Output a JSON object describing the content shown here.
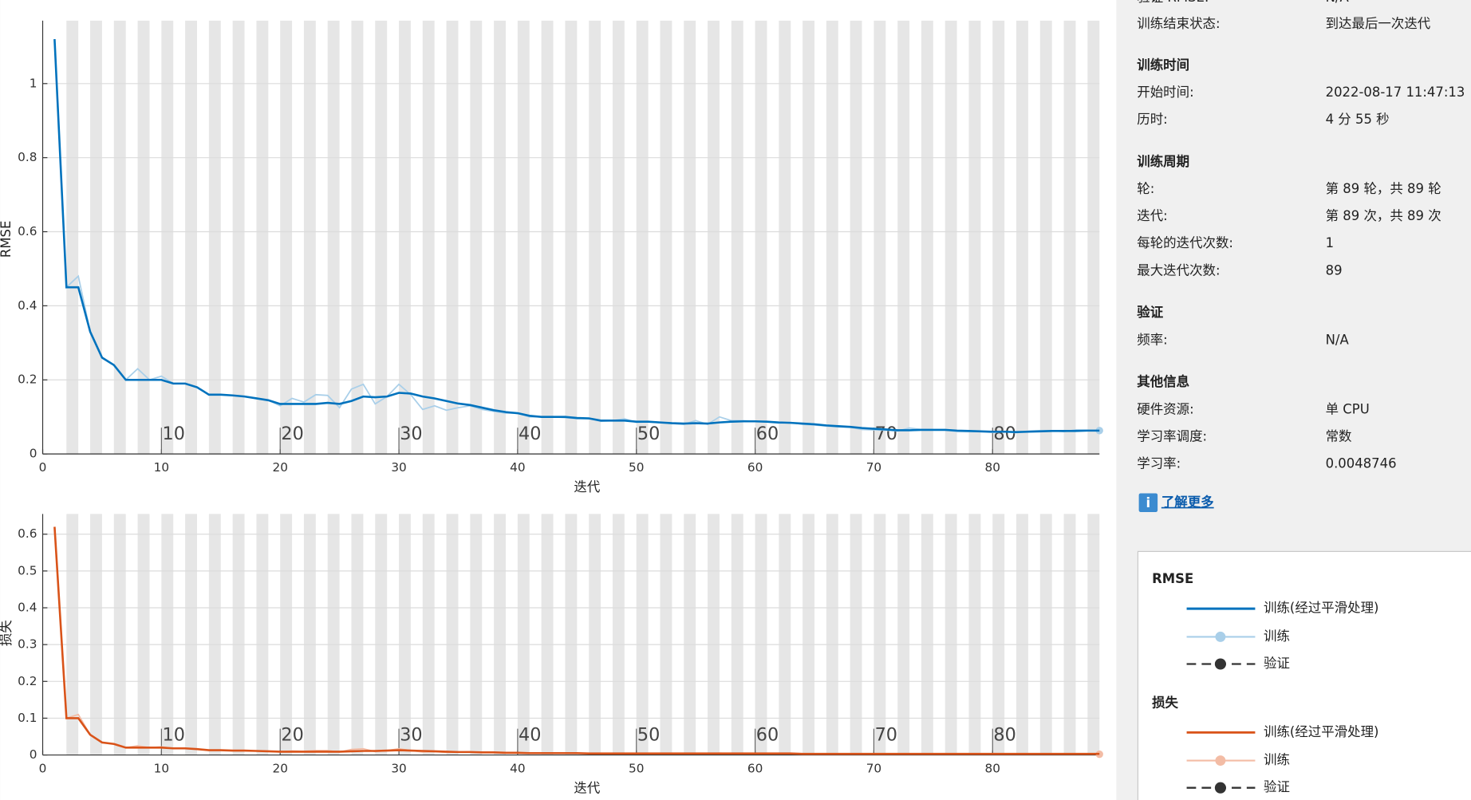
{
  "chart_data": [
    {
      "type": "line",
      "y_label": "RMSE",
      "x_label": "迭代",
      "x": [
        1,
        2,
        3,
        4,
        5,
        6,
        7,
        8,
        9,
        10,
        11,
        12,
        13,
        14,
        15,
        16,
        17,
        18,
        19,
        20,
        21,
        22,
        23,
        24,
        25,
        26,
        27,
        28,
        29,
        30,
        31,
        32,
        33,
        34,
        35,
        36,
        37,
        38,
        39,
        40,
        41,
        42,
        43,
        44,
        45,
        46,
        47,
        48,
        49,
        50,
        51,
        52,
        53,
        54,
        55,
        56,
        57,
        58,
        59,
        60,
        61,
        62,
        63,
        64,
        65,
        66,
        67,
        68,
        69,
        70,
        71,
        72,
        73,
        74,
        75,
        76,
        77,
        78,
        79,
        80,
        81,
        82,
        83,
        84,
        85,
        86,
        87,
        88,
        89
      ],
      "series": [
        {
          "name": "训练",
          "color": "#a9cfe9",
          "marker_last": true,
          "values": [
            1.12,
            0.45,
            0.48,
            0.33,
            0.26,
            0.24,
            0.2,
            0.23,
            0.2,
            0.21,
            0.19,
            0.19,
            0.18,
            0.16,
            0.16,
            0.158,
            0.155,
            0.15,
            0.145,
            0.13,
            0.15,
            0.14,
            0.16,
            0.158,
            0.125,
            0.175,
            0.188,
            0.135,
            0.155,
            0.188,
            0.16,
            0.12,
            0.13,
            0.118,
            0.125,
            0.13,
            0.12,
            0.115,
            0.11,
            0.11,
            0.1,
            0.1,
            0.1,
            0.098,
            0.095,
            0.096,
            0.088,
            0.09,
            0.095,
            0.085,
            0.087,
            0.084,
            0.082,
            0.08,
            0.09,
            0.08,
            0.1,
            0.09,
            0.09,
            0.088,
            0.086,
            0.083,
            0.085,
            0.08,
            0.078,
            0.075,
            0.073,
            0.072,
            0.066,
            0.065,
            0.064,
            0.062,
            0.07,
            0.066,
            0.065,
            0.065,
            0.06,
            0.06,
            0.06,
            0.058,
            0.06,
            0.057,
            0.062,
            0.063,
            0.063,
            0.06,
            0.065,
            0.064,
            0.063
          ]
        },
        {
          "name": "训练(经过平滑处理)",
          "color": "#0072bd",
          "values": [
            1.12,
            0.45,
            0.45,
            0.33,
            0.26,
            0.24,
            0.2,
            0.2,
            0.2,
            0.2,
            0.19,
            0.19,
            0.18,
            0.16,
            0.16,
            0.158,
            0.155,
            0.15,
            0.145,
            0.135,
            0.135,
            0.135,
            0.135,
            0.138,
            0.135,
            0.143,
            0.155,
            0.153,
            0.155,
            0.165,
            0.163,
            0.155,
            0.15,
            0.143,
            0.136,
            0.132,
            0.125,
            0.118,
            0.113,
            0.11,
            0.103,
            0.1,
            0.1,
            0.1,
            0.097,
            0.096,
            0.09,
            0.09,
            0.09,
            0.087,
            0.087,
            0.085,
            0.083,
            0.082,
            0.083,
            0.082,
            0.085,
            0.087,
            0.088,
            0.088,
            0.087,
            0.085,
            0.084,
            0.082,
            0.08,
            0.077,
            0.075,
            0.073,
            0.07,
            0.068,
            0.066,
            0.064,
            0.064,
            0.065,
            0.065,
            0.065,
            0.063,
            0.062,
            0.061,
            0.06,
            0.06,
            0.059,
            0.06,
            0.061,
            0.062,
            0.062,
            0.062,
            0.063,
            0.063
          ]
        }
      ],
      "validation_name": "验证",
      "xlim": [
        0,
        89
      ],
      "xticks": [
        0,
        10,
        20,
        30,
        40,
        50,
        60,
        70,
        80
      ],
      "ylim": [
        0,
        1.17
      ],
      "yticks": [
        0,
        0.2,
        0.4,
        0.6,
        0.8,
        1
      ],
      "epoch_ticks": [
        10,
        20,
        30,
        40,
        50,
        60,
        70,
        80
      ]
    },
    {
      "type": "line",
      "y_label": "损失",
      "x_label": "迭代",
      "x": [
        1,
        2,
        3,
        4,
        5,
        6,
        7,
        8,
        9,
        10,
        11,
        12,
        13,
        14,
        15,
        16,
        17,
        18,
        19,
        20,
        21,
        22,
        23,
        24,
        25,
        26,
        27,
        28,
        29,
        30,
        31,
        32,
        33,
        34,
        35,
        36,
        37,
        38,
        39,
        40,
        41,
        42,
        43,
        44,
        45,
        46,
        47,
        48,
        49,
        50,
        51,
        52,
        53,
        54,
        55,
        56,
        57,
        58,
        59,
        60,
        61,
        62,
        63,
        64,
        65,
        66,
        67,
        68,
        69,
        70,
        71,
        72,
        73,
        74,
        75,
        76,
        77,
        78,
        79,
        80,
        81,
        82,
        83,
        84,
        85,
        86,
        87,
        88,
        89
      ],
      "series": [
        {
          "name": "训练",
          "color": "#f3bca5",
          "marker_last": true,
          "values": [
            0.62,
            0.1,
            0.11,
            0.055,
            0.034,
            0.03,
            0.02,
            0.025,
            0.02,
            0.022,
            0.018,
            0.018,
            0.016,
            0.013,
            0.013,
            0.012,
            0.012,
            0.011,
            0.01,
            0.008,
            0.011,
            0.01,
            0.012,
            0.012,
            0.008,
            0.015,
            0.017,
            0.009,
            0.012,
            0.017,
            0.012,
            0.008,
            0.009,
            0.007,
            0.008,
            0.009,
            0.007,
            0.007,
            0.006,
            0.006,
            0.005,
            0.005,
            0.005,
            0.005,
            0.004,
            0.004,
            0.004,
            0.004,
            0.004,
            0.004,
            0.004,
            0.004,
            0.003,
            0.003,
            0.004,
            0.003,
            0.005,
            0.004,
            0.004,
            0.004,
            0.004,
            0.004,
            0.004,
            0.003,
            0.003,
            0.003,
            0.003,
            0.003,
            0.002,
            0.002,
            0.002,
            0.002,
            0.003,
            0.002,
            0.002,
            0.002,
            0.002,
            0.002,
            0.002,
            0.002,
            0.002,
            0.002,
            0.002,
            0.002,
            0.002,
            0.002,
            0.002,
            0.002,
            0.002
          ]
        },
        {
          "name": "训练(经过平滑处理)",
          "color": "#d95319",
          "values": [
            0.62,
            0.1,
            0.1,
            0.055,
            0.034,
            0.03,
            0.02,
            0.02,
            0.02,
            0.02,
            0.018,
            0.018,
            0.016,
            0.013,
            0.013,
            0.012,
            0.012,
            0.011,
            0.01,
            0.009,
            0.009,
            0.009,
            0.009,
            0.009,
            0.009,
            0.01,
            0.011,
            0.011,
            0.012,
            0.013,
            0.012,
            0.011,
            0.01,
            0.009,
            0.008,
            0.008,
            0.007,
            0.007,
            0.006,
            0.006,
            0.005,
            0.005,
            0.005,
            0.005,
            0.005,
            0.004,
            0.004,
            0.004,
            0.004,
            0.004,
            0.004,
            0.004,
            0.004,
            0.004,
            0.004,
            0.004,
            0.004,
            0.004,
            0.004,
            0.004,
            0.004,
            0.004,
            0.004,
            0.003,
            0.003,
            0.003,
            0.003,
            0.003,
            0.003,
            0.003,
            0.003,
            0.003,
            0.003,
            0.003,
            0.003,
            0.003,
            0.003,
            0.003,
            0.003,
            0.003,
            0.003,
            0.003,
            0.003,
            0.003,
            0.003,
            0.003,
            0.003,
            0.003,
            0.003
          ]
        }
      ],
      "validation_name": "验证",
      "xlim": [
        0,
        89
      ],
      "xticks": [
        0,
        10,
        20,
        30,
        40,
        50,
        60,
        70,
        80
      ],
      "ylim": [
        0,
        0.655
      ],
      "yticks": [
        0,
        0.1,
        0.2,
        0.3,
        0.4,
        0.5,
        0.6
      ],
      "epoch_ticks": [
        10,
        20,
        30,
        40,
        50,
        60,
        70,
        80
      ]
    }
  ],
  "info_panel": {
    "top_rows": [
      [
        "验证 RMSE:",
        "N/A"
      ],
      [
        "训练结束状态:",
        "到达最后一次迭代"
      ]
    ],
    "sections": [
      {
        "title": "训练时间",
        "rows": [
          [
            "开始时间:",
            "2022-08-17 11:47:13"
          ],
          [
            "历时:",
            "4 分 55 秒"
          ]
        ]
      },
      {
        "title": "训练周期",
        "rows": [
          [
            "轮:",
            "第 89 轮，共 89 轮"
          ],
          [
            "迭代:",
            "第 89 次，共 89 次"
          ],
          [
            "每轮的迭代次数:",
            "1"
          ],
          [
            "最大迭代次数:",
            "89"
          ]
        ]
      },
      {
        "title": "验证",
        "rows": [
          [
            "频率:",
            "N/A"
          ]
        ]
      },
      {
        "title": "其他信息",
        "rows": [
          [
            "硬件资源:",
            "单 CPU"
          ],
          [
            "学习率调度:",
            "常数"
          ],
          [
            "学习率:",
            "0.0048746"
          ]
        ]
      }
    ],
    "link": "了解更多"
  }
}
